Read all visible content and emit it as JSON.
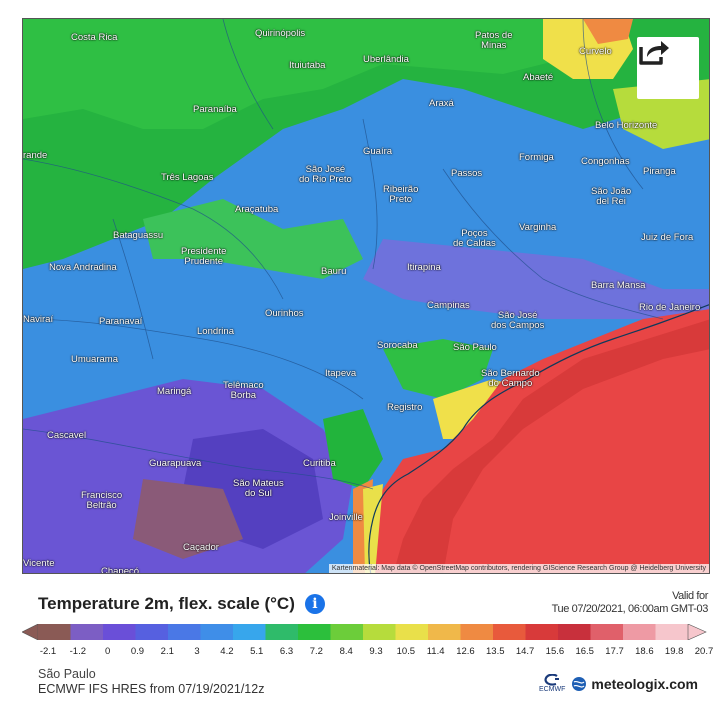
{
  "map": {
    "attribution": "Kartenmaterial: Map data © OpenStreetMap contributors, rendering GIScience Research Group @ Heidelberg University",
    "colors": {
      "land_blue": "#3a8fe0",
      "land_green": "#22b43c",
      "purple": "#6e52d6",
      "ocean_red": "#e84545",
      "yellow": "#f0e04a"
    },
    "cities": [
      {
        "name": "Costa Rica"
      },
      {
        "name": "Quirinópolis"
      },
      {
        "name": "Patos de\nMinas"
      },
      {
        "name": "Curvelo"
      },
      {
        "name": "Ituiutaba"
      },
      {
        "name": "Uberlândia"
      },
      {
        "name": "Abaeté"
      },
      {
        "name": "Paranaíba"
      },
      {
        "name": "Araxá"
      },
      {
        "name": "Belo Horizonte"
      },
      {
        "name": "Guaíra"
      },
      {
        "name": "Formiga"
      },
      {
        "name": "Congonhas"
      },
      {
        "name": "Três Lagoas"
      },
      {
        "name": "São José\ndo Rio Preto"
      },
      {
        "name": "Passos"
      },
      {
        "name": "Piranga"
      },
      {
        "name": "Ribeirão\nPreto"
      },
      {
        "name": "São João\ndel Rei"
      },
      {
        "name": "Araçatuba"
      },
      {
        "name": "Varginha"
      },
      {
        "name": "Poços\nde Caldas"
      },
      {
        "name": "Juiz de Fora"
      },
      {
        "name": "Bataguassu"
      },
      {
        "name": "Presidente\nPrudente"
      },
      {
        "name": "Bauru"
      },
      {
        "name": "Itirapina"
      },
      {
        "name": "Nova Andradina"
      },
      {
        "name": "Barra Mansa"
      },
      {
        "name": "Campinas"
      },
      {
        "name": "São José\ndos Campos"
      },
      {
        "name": "Rio de Janeiro"
      },
      {
        "name": "Naviraí"
      },
      {
        "name": "Paranavaí"
      },
      {
        "name": "Ourinhos"
      },
      {
        "name": "Londrina"
      },
      {
        "name": "Sorocaba"
      },
      {
        "name": "São Paulo"
      },
      {
        "name": "Umuarama"
      },
      {
        "name": "Itapeva"
      },
      {
        "name": "São Bernardo\ndo Campo"
      },
      {
        "name": "Maringá"
      },
      {
        "name": "Telêmaco\nBorba"
      },
      {
        "name": "Registro"
      },
      {
        "name": "Cascavel"
      },
      {
        "name": "Guarapuava"
      },
      {
        "name": "Curitiba"
      },
      {
        "name": "São Mateus\ndo Sul"
      },
      {
        "name": "Francisco\nBeltrão"
      },
      {
        "name": "Joinville"
      },
      {
        "name": "Caçador"
      },
      {
        "name": "Chapecó"
      },
      {
        "name": "Vicente"
      },
      {
        "name": "rande"
      }
    ]
  },
  "legend": {
    "title": "Temperature 2m, flex. scale (°C)",
    "valid_label": "Valid for",
    "valid_date": "Tue 07/20/2021, 06:00am GMT-03",
    "colors": [
      "#8a5a55",
      "#7c5ec4",
      "#6a4fd8",
      "#5660e0",
      "#4a78e6",
      "#3f8ee8",
      "#37a6ec",
      "#2fbb6a",
      "#2cbf3c",
      "#6ccd3a",
      "#b6dc3c",
      "#e9e04a",
      "#f0b84a",
      "#ef8a42",
      "#e85a3c",
      "#d83a3a",
      "#c8303c",
      "#e0606a",
      "#ee9aa4",
      "#f6c6cc"
    ],
    "ticks": [
      "-2.1",
      "-1.2",
      "0",
      "0.9",
      "2.1",
      "3",
      "4.2",
      "5.1",
      "6.3",
      "7.2",
      "8.4",
      "9.3",
      "10.5",
      "11.4",
      "12.6",
      "13.5",
      "14.7",
      "15.6",
      "16.5",
      "17.7",
      "18.6",
      "19.8",
      "20.7"
    ],
    "location": "São Paulo",
    "model": "ECMWF IFS HRES from 07/19/2021/12z",
    "ecmwf_label": "ECMWF",
    "brand": "meteologix.com"
  }
}
